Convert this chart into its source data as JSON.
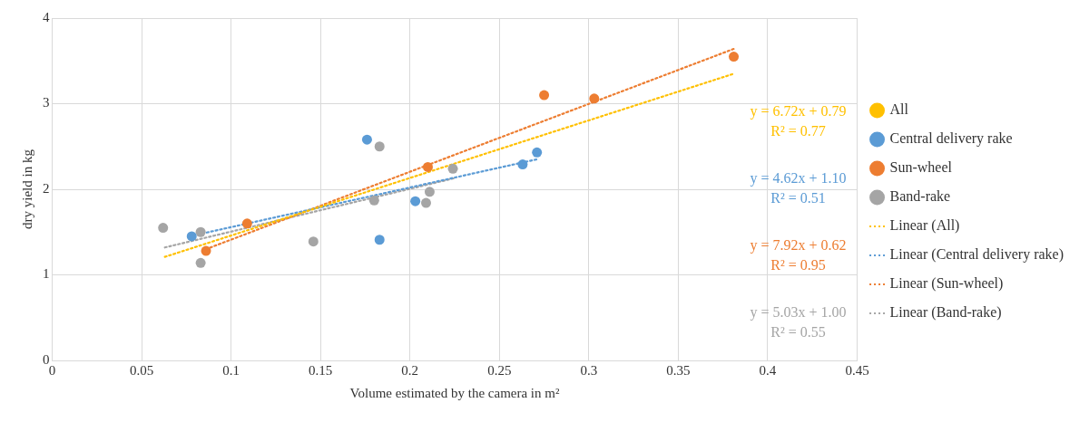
{
  "chart_data": {
    "type": "scatter",
    "xlabel": "Volume estimated by the camera in m²",
    "ylabel": "dry yield in kg",
    "xlim": [
      0,
      0.45
    ],
    "xticks": [
      0,
      0.05,
      0.1,
      0.15,
      0.2,
      0.25,
      0.3,
      0.35,
      0.4,
      0.45
    ],
    "ylim": [
      0,
      4
    ],
    "yticks": [
      0,
      1,
      2,
      3,
      4
    ],
    "grid": true,
    "legend": "right",
    "marker": "circle",
    "series": [
      {
        "name": "All",
        "color": "#ffc000"
      },
      {
        "name": "Central delivery rake",
        "color": "#5b9bd5",
        "x": [
          0.078,
          0.176,
          0.183,
          0.203,
          0.263,
          0.271
        ],
        "values": [
          1.45,
          2.58,
          1.41,
          1.86,
          2.29,
          2.43
        ]
      },
      {
        "name": "Sun-wheel",
        "color": "#ed7d31",
        "x": [
          0.086,
          0.109,
          0.21,
          0.275,
          0.303,
          0.381
        ],
        "values": [
          1.28,
          1.6,
          2.26,
          3.1,
          3.06,
          3.55
        ]
      },
      {
        "name": "Band-rake",
        "color": "#a5a5a5",
        "x": [
          0.062,
          0.083,
          0.083,
          0.146,
          0.18,
          0.183,
          0.209,
          0.211,
          0.224
        ],
        "values": [
          1.55,
          1.5,
          1.14,
          1.39,
          1.87,
          2.5,
          1.84,
          1.97,
          2.24
        ]
      },
      {
        "name": "Linear (All)",
        "type": "line",
        "line_style": "dotted",
        "marker": "none",
        "color": "#ffc000",
        "x": [
          0.063,
          0.381
        ],
        "values": [
          1.21,
          3.35
        ]
      },
      {
        "name": "Linear (Central delivery rake)",
        "type": "line",
        "line_style": "dotted",
        "marker": "none",
        "color": "#5b9bd5",
        "x": [
          0.079,
          0.271
        ],
        "values": [
          1.46,
          2.35
        ]
      },
      {
        "name": "Linear (Sun-wheel)",
        "type": "line",
        "line_style": "dotted",
        "marker": "none",
        "color": "#ed7d31",
        "x": [
          0.086,
          0.381
        ],
        "values": [
          1.3,
          3.64
        ]
      },
      {
        "name": "Linear (Band-rake)",
        "type": "line",
        "line_style": "dotted",
        "marker": "none",
        "color": "#a5a5a5",
        "x": [
          0.063,
          0.225
        ],
        "values": [
          1.32,
          2.13
        ]
      }
    ],
    "annotations": [
      "y = 6.72x + 0.79\nR² = 0.77",
      "y = 4.62x + 1.10\nR² = 0.51",
      "y = 7.92x + 0.62\nR² = 0.95",
      "y = 5.03x + 1.00\nR² = 0.55"
    ]
  }
}
